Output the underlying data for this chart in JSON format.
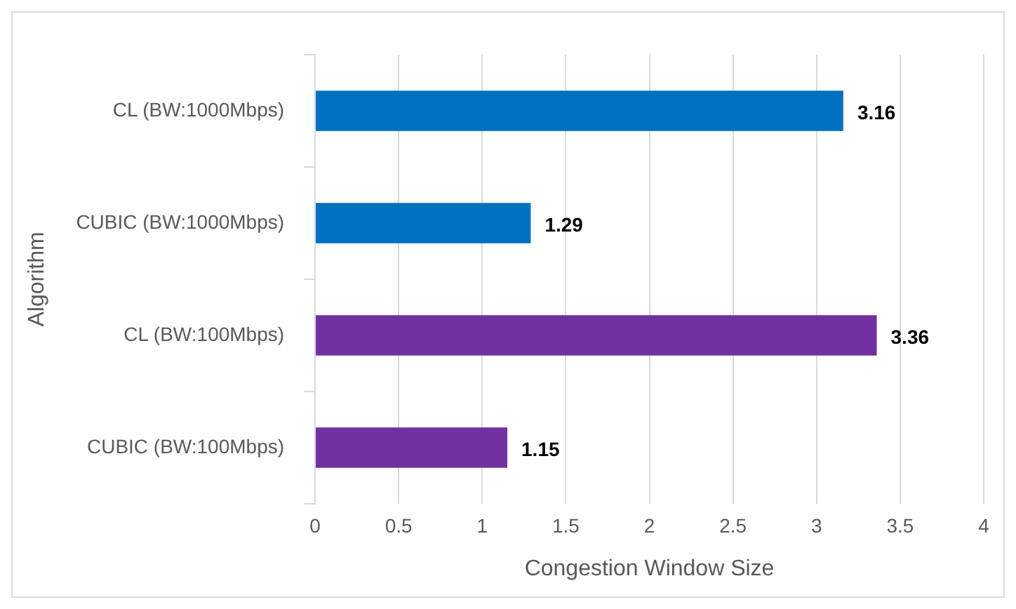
{
  "chart_data": {
    "type": "bar",
    "orientation": "horizontal",
    "xlabel": "Congestion Window Size",
    "ylabel": "Algorithm",
    "categories": [
      "CL (BW:1000Mbps)",
      "CUBIC (BW:1000Mbps)",
      "CL (BW:100Mbps)",
      "CUBIC (BW:100Mbps)"
    ],
    "values": [
      3.16,
      1.29,
      3.36,
      1.15
    ],
    "colors": [
      "#0070c0",
      "#0070c0",
      "#7030a0",
      "#7030a0"
    ],
    "xlim": [
      0,
      4
    ],
    "xticks": [
      0,
      0.5,
      1,
      1.5,
      2,
      2.5,
      3,
      3.5,
      4
    ],
    "grid": "x",
    "data_labels": true
  }
}
